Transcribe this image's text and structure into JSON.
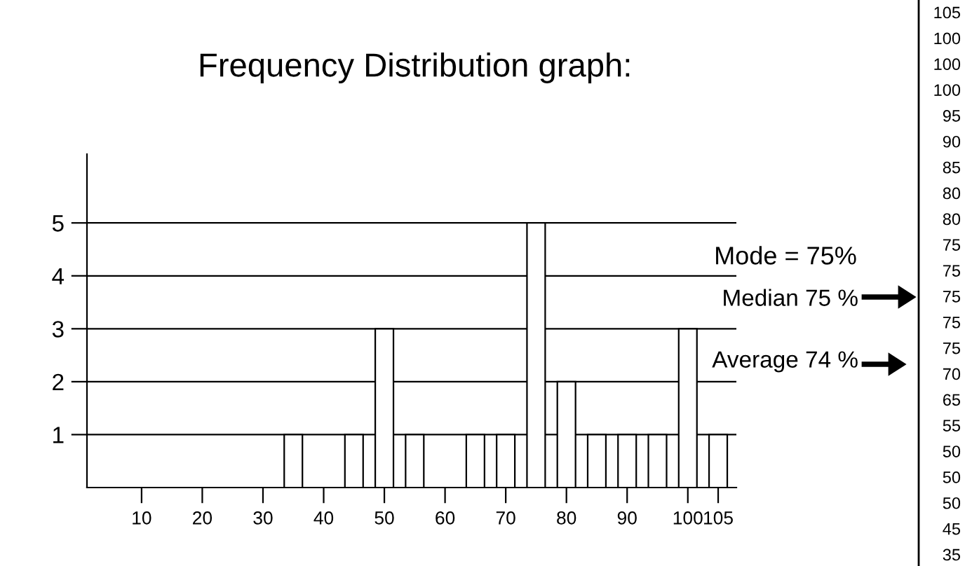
{
  "chart_data": {
    "type": "bar",
    "title": "Frequency Distribution graph:",
    "x": [
      35,
      45,
      50,
      55,
      65,
      70,
      75,
      80,
      85,
      90,
      95,
      100,
      105
    ],
    "values": [
      1,
      1,
      3,
      1,
      1,
      1,
      5,
      2,
      1,
      1,
      1,
      3,
      1
    ],
    "color": "#ffffff",
    "xlim": [
      1,
      108
    ],
    "xticks": [
      10,
      20,
      30,
      40,
      50,
      60,
      70,
      80,
      90,
      100,
      105
    ],
    "ylim": [
      0,
      6.3
    ],
    "yticks": [
      1,
      2,
      3,
      4,
      5
    ],
    "grid": "y",
    "annotations": [
      "Mode = 75%",
      "Median 75 %",
      "Average 74 %",
      "105",
      "100",
      "100",
      "100",
      "95",
      "90",
      "85",
      "80",
      "80",
      "75",
      "75",
      "75",
      "75",
      "75",
      "70",
      "65",
      "55",
      "50",
      "50",
      "50",
      "45",
      "35"
    ]
  }
}
